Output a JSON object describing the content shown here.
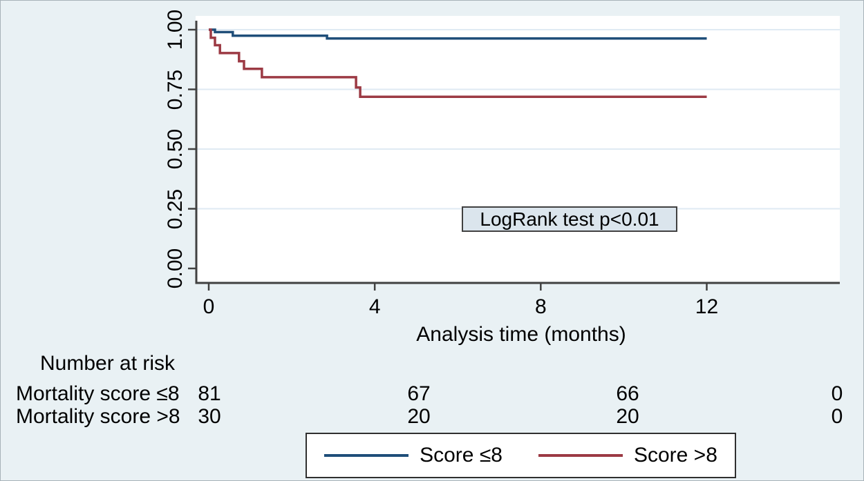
{
  "chart_data": {
    "type": "line",
    "subtype": "kaplan_meier_step",
    "title": "",
    "xlabel": "Analysis time (months)",
    "ylabel": "",
    "x_ticks": [
      0,
      4,
      8,
      12
    ],
    "y_ticks": [
      0,
      0.25,
      0.5,
      0.75,
      1
    ],
    "y_tick_labels": [
      "0.00",
      "0.25",
      "0.50",
      "0.75",
      "1.00"
    ],
    "ylim": [
      0,
      1
    ],
    "xlim": [
      0,
      15.2
    ],
    "grid": "horizontal",
    "legend_position": "bottom",
    "annotation": {
      "text": "LogRank test p<0.01"
    },
    "series": [
      {
        "name": "Score ≤8",
        "color": "#1f4e79",
        "steps": [
          [
            0,
            1.0
          ],
          [
            0.15,
            0.99
          ],
          [
            0.58,
            0.975
          ],
          [
            2.85,
            0.963
          ],
          [
            12,
            0.963
          ]
        ]
      },
      {
        "name": "Score >8",
        "color": "#9c3a44",
        "steps": [
          [
            0,
            1.0
          ],
          [
            0.05,
            0.966
          ],
          [
            0.15,
            0.935
          ],
          [
            0.27,
            0.902
          ],
          [
            0.73,
            0.868
          ],
          [
            0.85,
            0.836
          ],
          [
            1.28,
            0.801
          ],
          [
            3.55,
            0.758
          ],
          [
            3.65,
            0.719
          ],
          [
            12,
            0.719
          ]
        ]
      }
    ]
  },
  "risk_table": {
    "title": "Number at risk",
    "rows": [
      {
        "label": "Mortality score ≤8",
        "counts": [
          "81",
          "67",
          "66",
          "0"
        ]
      },
      {
        "label": "Mortality score >8",
        "counts": [
          "30",
          "20",
          "20",
          "0"
        ]
      }
    ]
  },
  "colors": {
    "background": "#e9f1f4",
    "plot_background": "#ffffff",
    "gridline": "#dfeaf3",
    "axis": "#414141",
    "annotation_background": "#dbe5ed",
    "annotation_border": "#404040",
    "legend_border": "#2f2f2f",
    "text": "#000000",
    "series_blue": "#1f4e79",
    "series_red": "#9c3a44"
  }
}
